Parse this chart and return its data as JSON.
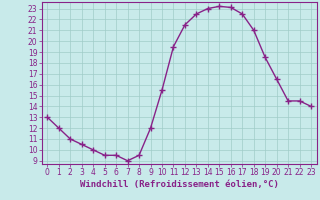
{
  "x": [
    0,
    1,
    2,
    3,
    4,
    5,
    6,
    7,
    8,
    9,
    10,
    11,
    12,
    13,
    14,
    15,
    16,
    17,
    18,
    19,
    20,
    21,
    22,
    23
  ],
  "y": [
    13,
    12,
    11,
    10.5,
    10,
    9.5,
    9.5,
    9,
    9.5,
    12,
    15.5,
    19.5,
    21.5,
    22.5,
    23,
    23.2,
    23.1,
    22.5,
    21,
    18.5,
    16.5,
    14.5,
    14.5,
    14
  ],
  "line_color": "#882288",
  "marker": "+",
  "marker_size": 4,
  "marker_edge_width": 1.0,
  "xlabel": "Windchill (Refroidissement éolien,°C)",
  "xlabel_fontsize": 6.5,
  "ylim": [
    8.7,
    23.6
  ],
  "xlim": [
    -0.5,
    23.5
  ],
  "yticks": [
    9,
    10,
    11,
    12,
    13,
    14,
    15,
    16,
    17,
    18,
    19,
    20,
    21,
    22,
    23
  ],
  "xticks": [
    0,
    1,
    2,
    3,
    4,
    5,
    6,
    7,
    8,
    9,
    10,
    11,
    12,
    13,
    14,
    15,
    16,
    17,
    18,
    19,
    20,
    21,
    22,
    23
  ],
  "bg_color": "#c8eaea",
  "grid_color": "#a0ccc8",
  "tick_color": "#882288",
  "tick_fontsize": 5.5,
  "line_width": 1.0,
  "spine_color": "#882288"
}
